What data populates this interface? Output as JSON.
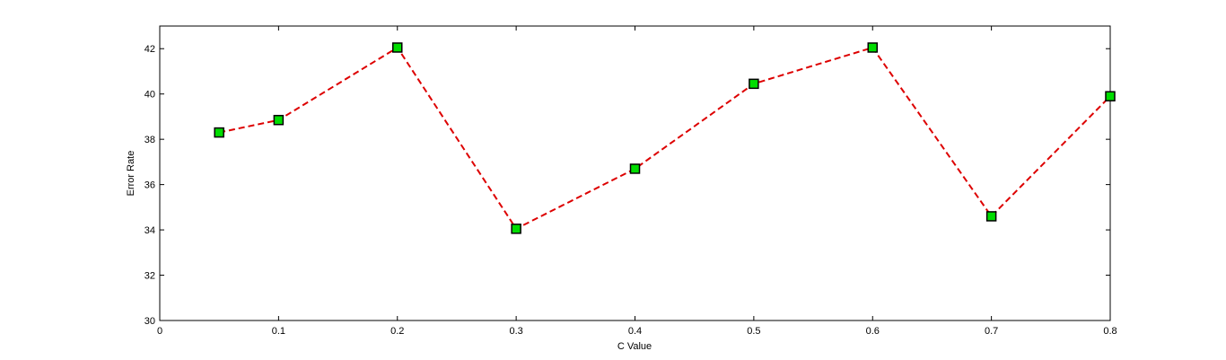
{
  "chart_data": {
    "type": "line",
    "title": "",
    "xlabel": "C Value",
    "ylabel": "Error Rate",
    "xlim": [
      0,
      0.8
    ],
    "ylim": [
      30,
      43
    ],
    "x_ticks": [
      "0",
      "0.1",
      "0.2",
      "0.3",
      "0.4",
      "0.5",
      "0.6",
      "0.7",
      "0.8"
    ],
    "y_ticks": [
      "30",
      "32",
      "34",
      "36",
      "38",
      "40",
      "42"
    ],
    "grid": false,
    "legend": "none",
    "series": [
      {
        "x": [
          0.05,
          0.1,
          0.2,
          0.3,
          0.4,
          0.5,
          0.6,
          0.7,
          0.8
        ],
        "y": [
          38.3,
          38.85,
          42.05,
          34.05,
          36.7,
          40.45,
          42.05,
          34.6,
          39.9
        ],
        "line_color": "#dd0000",
        "line_style": "dashed",
        "marker": "square",
        "marker_color": "#00dd00",
        "marker_edge_color": "#000000"
      }
    ]
  }
}
